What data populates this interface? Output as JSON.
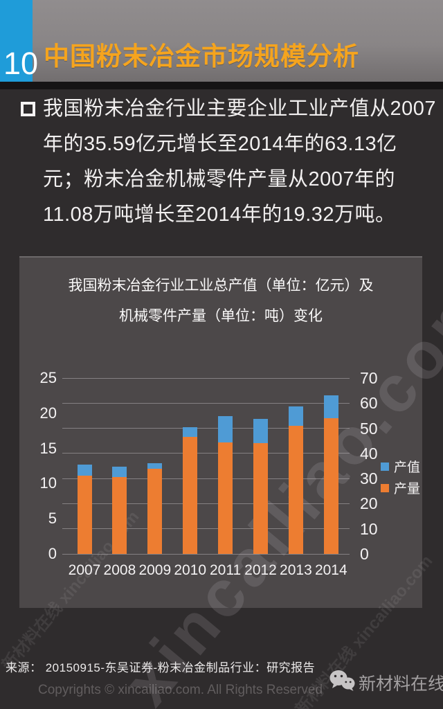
{
  "page": {
    "slide_number": "10",
    "title": "中国粉末冶金市场规模分析",
    "paragraph_lines": [
      "我国粉末冶金行业主要企业工业产值从2007",
      "年的35.59亿元增长至2014年的63.13亿",
      "元；粉末冶金机械零件产量从2007年的",
      "11.08万吨增长至2014年的19.32万吨。"
    ],
    "source_line": "来源：  20150915-东吴证券-粉末冶金制品行业：研究报告",
    "copyright": "Copyrights © xincailiao.com. All Rights Reserved",
    "brand_name": "新材料在线",
    "watermark_text": "xincailiao.com",
    "watermark_small": "新材料在线 xincailiao.com"
  },
  "colors": {
    "page_background": "#2f2c2d",
    "header_gray": "#898586",
    "slide_number_blue": "#1f9cd9",
    "title_orange": "#f5a41e",
    "panel_background": "#4c4849",
    "gridline": "#858183",
    "series_blue": "#4f9bd5",
    "series_orange": "#ed7d31",
    "text_white": "#f2f0f0"
  },
  "chart_data": {
    "type": "bar",
    "title_lines": [
      "我国粉末冶金行业工业总产值（单位：亿元）及",
      "机械零件产量（单位：吨）变化"
    ],
    "categories": [
      "2007",
      "2008",
      "2009",
      "2010",
      "2011",
      "2012",
      "2013",
      "2014"
    ],
    "series": [
      {
        "name": "产值",
        "axis": "right",
        "color": "#4f9bd5",
        "values": [
          35.59,
          34.7,
          36.1,
          50.4,
          54.8,
          53.7,
          58.7,
          63.13
        ]
      },
      {
        "name": "产量",
        "axis": "left",
        "color": "#ed7d31",
        "values": [
          11.08,
          10.9,
          12.1,
          16.6,
          15.8,
          15.7,
          18.2,
          19.32
        ]
      }
    ],
    "left_axis": {
      "min": 0,
      "max": 25,
      "step": 5
    },
    "right_axis": {
      "min": 0,
      "max": 70,
      "step": 10
    },
    "grid": true,
    "legend_position": "right",
    "bar_style": "overlapped-dual-axis"
  }
}
